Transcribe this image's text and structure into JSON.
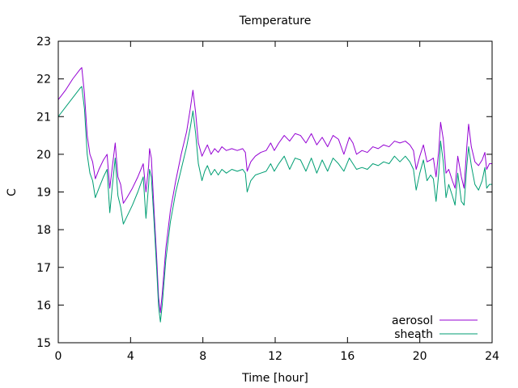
{
  "chart_data": {
    "type": "line",
    "title": "Temperature",
    "xlabel": "Time [hour]",
    "ylabel": "C",
    "xlim": [
      0,
      24
    ],
    "ylim": [
      15,
      23
    ],
    "xticks": [
      0,
      4,
      8,
      12,
      16,
      20,
      24
    ],
    "yticks": [
      15,
      16,
      17,
      18,
      19,
      20,
      21,
      22,
      23
    ],
    "grid": false,
    "legend_position": "bottom-right",
    "series": [
      {
        "name": "aerosol",
        "color": "#9400d3",
        "points": [
          [
            0.0,
            21.45
          ],
          [
            0.4,
            21.7
          ],
          [
            0.8,
            22.0
          ],
          [
            1.2,
            22.25
          ],
          [
            1.3,
            22.3
          ],
          [
            1.45,
            21.6
          ],
          [
            1.6,
            20.5
          ],
          [
            1.75,
            20.0
          ],
          [
            1.9,
            19.8
          ],
          [
            2.05,
            19.35
          ],
          [
            2.25,
            19.6
          ],
          [
            2.5,
            19.85
          ],
          [
            2.7,
            20.0
          ],
          [
            2.85,
            19.1
          ],
          [
            3.0,
            19.7
          ],
          [
            3.15,
            20.3
          ],
          [
            3.3,
            19.4
          ],
          [
            3.45,
            19.2
          ],
          [
            3.6,
            18.7
          ],
          [
            3.8,
            18.85
          ],
          [
            4.1,
            19.1
          ],
          [
            4.4,
            19.4
          ],
          [
            4.7,
            19.75
          ],
          [
            4.85,
            19.0
          ],
          [
            5.0,
            19.7
          ],
          [
            5.05,
            20.15
          ],
          [
            5.15,
            19.9
          ],
          [
            5.3,
            18.5
          ],
          [
            5.45,
            17.2
          ],
          [
            5.55,
            16.2
          ],
          [
            5.65,
            15.8
          ],
          [
            5.75,
            16.3
          ],
          [
            5.95,
            17.5
          ],
          [
            6.2,
            18.5
          ],
          [
            6.5,
            19.3
          ],
          [
            6.8,
            20.0
          ],
          [
            7.1,
            20.6
          ],
          [
            7.3,
            21.2
          ],
          [
            7.45,
            21.7
          ],
          [
            7.6,
            21.1
          ],
          [
            7.75,
            20.3
          ],
          [
            7.95,
            19.95
          ],
          [
            8.1,
            20.1
          ],
          [
            8.25,
            20.25
          ],
          [
            8.45,
            20.0
          ],
          [
            8.65,
            20.15
          ],
          [
            8.85,
            20.05
          ],
          [
            9.05,
            20.2
          ],
          [
            9.3,
            20.1
          ],
          [
            9.6,
            20.15
          ],
          [
            9.9,
            20.1
          ],
          [
            10.2,
            20.15
          ],
          [
            10.35,
            20.05
          ],
          [
            10.45,
            19.55
          ],
          [
            10.65,
            19.8
          ],
          [
            10.9,
            19.95
          ],
          [
            11.2,
            20.05
          ],
          [
            11.5,
            20.1
          ],
          [
            11.75,
            20.3
          ],
          [
            11.95,
            20.1
          ],
          [
            12.2,
            20.3
          ],
          [
            12.5,
            20.5
          ],
          [
            12.8,
            20.35
          ],
          [
            13.1,
            20.55
          ],
          [
            13.4,
            20.5
          ],
          [
            13.7,
            20.3
          ],
          [
            14.0,
            20.55
          ],
          [
            14.3,
            20.25
          ],
          [
            14.6,
            20.45
          ],
          [
            14.9,
            20.2
          ],
          [
            15.2,
            20.5
          ],
          [
            15.5,
            20.4
          ],
          [
            15.8,
            20.0
          ],
          [
            16.1,
            20.45
          ],
          [
            16.3,
            20.3
          ],
          [
            16.5,
            20.0
          ],
          [
            16.8,
            20.1
          ],
          [
            17.1,
            20.05
          ],
          [
            17.4,
            20.2
          ],
          [
            17.7,
            20.15
          ],
          [
            18.0,
            20.25
          ],
          [
            18.3,
            20.2
          ],
          [
            18.6,
            20.35
          ],
          [
            18.9,
            20.3
          ],
          [
            19.2,
            20.35
          ],
          [
            19.45,
            20.25
          ],
          [
            19.65,
            20.1
          ],
          [
            19.8,
            19.6
          ],
          [
            20.0,
            19.95
          ],
          [
            20.2,
            20.25
          ],
          [
            20.4,
            19.8
          ],
          [
            20.6,
            19.85
          ],
          [
            20.75,
            19.9
          ],
          [
            20.9,
            19.4
          ],
          [
            21.05,
            20.1
          ],
          [
            21.15,
            20.85
          ],
          [
            21.3,
            20.4
          ],
          [
            21.45,
            19.5
          ],
          [
            21.6,
            19.6
          ],
          [
            21.8,
            19.3
          ],
          [
            21.95,
            19.1
          ],
          [
            22.1,
            19.95
          ],
          [
            22.3,
            19.4
          ],
          [
            22.45,
            19.1
          ],
          [
            22.6,
            20.2
          ],
          [
            22.7,
            20.8
          ],
          [
            22.85,
            20.2
          ],
          [
            23.05,
            19.8
          ],
          [
            23.25,
            19.7
          ],
          [
            23.45,
            19.85
          ],
          [
            23.6,
            20.05
          ],
          [
            23.7,
            19.6
          ],
          [
            23.85,
            19.75
          ],
          [
            24.0,
            19.75
          ]
        ]
      },
      {
        "name": "sheath",
        "color": "#009e73",
        "points": [
          [
            0.0,
            21.0
          ],
          [
            0.4,
            21.25
          ],
          [
            0.8,
            21.5
          ],
          [
            1.2,
            21.75
          ],
          [
            1.3,
            21.8
          ],
          [
            1.45,
            21.2
          ],
          [
            1.6,
            20.0
          ],
          [
            1.75,
            19.5
          ],
          [
            1.9,
            19.3
          ],
          [
            2.05,
            18.85
          ],
          [
            2.25,
            19.1
          ],
          [
            2.5,
            19.4
          ],
          [
            2.7,
            19.6
          ],
          [
            2.85,
            18.45
          ],
          [
            3.0,
            19.2
          ],
          [
            3.15,
            19.9
          ],
          [
            3.3,
            18.9
          ],
          [
            3.45,
            18.6
          ],
          [
            3.6,
            18.15
          ],
          [
            3.8,
            18.35
          ],
          [
            4.1,
            18.65
          ],
          [
            4.4,
            19.0
          ],
          [
            4.7,
            19.4
          ],
          [
            4.85,
            18.3
          ],
          [
            5.0,
            19.2
          ],
          [
            5.05,
            19.6
          ],
          [
            5.15,
            19.4
          ],
          [
            5.3,
            18.2
          ],
          [
            5.45,
            16.9
          ],
          [
            5.55,
            15.95
          ],
          [
            5.65,
            15.55
          ],
          [
            5.75,
            16.0
          ],
          [
            5.95,
            17.2
          ],
          [
            6.2,
            18.2
          ],
          [
            6.5,
            19.0
          ],
          [
            6.8,
            19.6
          ],
          [
            7.1,
            20.2
          ],
          [
            7.3,
            20.7
          ],
          [
            7.45,
            21.15
          ],
          [
            7.6,
            20.55
          ],
          [
            7.75,
            19.75
          ],
          [
            7.95,
            19.3
          ],
          [
            8.1,
            19.55
          ],
          [
            8.25,
            19.7
          ],
          [
            8.45,
            19.45
          ],
          [
            8.65,
            19.6
          ],
          [
            8.85,
            19.45
          ],
          [
            9.05,
            19.6
          ],
          [
            9.3,
            19.5
          ],
          [
            9.6,
            19.6
          ],
          [
            9.9,
            19.55
          ],
          [
            10.2,
            19.6
          ],
          [
            10.35,
            19.5
          ],
          [
            10.45,
            19.0
          ],
          [
            10.65,
            19.3
          ],
          [
            10.9,
            19.45
          ],
          [
            11.2,
            19.5
          ],
          [
            11.5,
            19.55
          ],
          [
            11.75,
            19.75
          ],
          [
            11.95,
            19.55
          ],
          [
            12.2,
            19.75
          ],
          [
            12.5,
            19.95
          ],
          [
            12.8,
            19.6
          ],
          [
            13.1,
            19.9
          ],
          [
            13.4,
            19.85
          ],
          [
            13.7,
            19.55
          ],
          [
            14.0,
            19.9
          ],
          [
            14.3,
            19.5
          ],
          [
            14.6,
            19.85
          ],
          [
            14.9,
            19.55
          ],
          [
            15.2,
            19.9
          ],
          [
            15.5,
            19.75
          ],
          [
            15.8,
            19.55
          ],
          [
            16.1,
            19.9
          ],
          [
            16.3,
            19.75
          ],
          [
            16.5,
            19.6
          ],
          [
            16.8,
            19.65
          ],
          [
            17.1,
            19.6
          ],
          [
            17.4,
            19.75
          ],
          [
            17.7,
            19.7
          ],
          [
            18.0,
            19.8
          ],
          [
            18.3,
            19.75
          ],
          [
            18.6,
            19.95
          ],
          [
            18.9,
            19.8
          ],
          [
            19.2,
            19.95
          ],
          [
            19.45,
            19.8
          ],
          [
            19.65,
            19.6
          ],
          [
            19.8,
            19.05
          ],
          [
            20.0,
            19.5
          ],
          [
            20.2,
            19.85
          ],
          [
            20.4,
            19.3
          ],
          [
            20.6,
            19.45
          ],
          [
            20.75,
            19.35
          ],
          [
            20.9,
            18.75
          ],
          [
            21.05,
            19.5
          ],
          [
            21.15,
            20.35
          ],
          [
            21.3,
            19.8
          ],
          [
            21.45,
            18.85
          ],
          [
            21.6,
            19.2
          ],
          [
            21.8,
            18.9
          ],
          [
            21.95,
            18.65
          ],
          [
            22.1,
            19.5
          ],
          [
            22.3,
            18.75
          ],
          [
            22.45,
            18.65
          ],
          [
            22.6,
            19.7
          ],
          [
            22.7,
            20.2
          ],
          [
            22.85,
            19.7
          ],
          [
            23.05,
            19.2
          ],
          [
            23.25,
            19.05
          ],
          [
            23.45,
            19.3
          ],
          [
            23.6,
            19.65
          ],
          [
            23.7,
            19.1
          ],
          [
            23.85,
            19.2
          ],
          [
            24.0,
            19.2
          ]
        ]
      }
    ]
  }
}
